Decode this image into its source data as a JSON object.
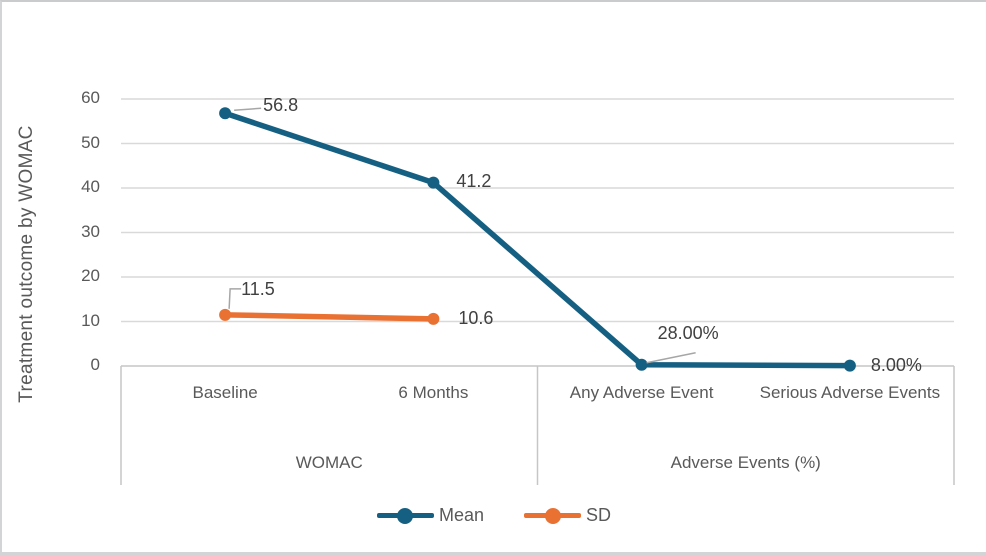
{
  "figure": {
    "background": "#ffffff",
    "frame_color": "#d2d4d6"
  },
  "chart_data": {
    "type": "line",
    "title": "",
    "xlabel": "",
    "ylabel": "Treatment outcome by WOMAC",
    "ylim": [
      0,
      60
    ],
    "ytick_step": 10,
    "ytick_labels": [
      "60",
      "50",
      "40",
      "30",
      "20",
      "10",
      "0"
    ],
    "grid": "horizontal",
    "grid_color": "#d9d9d9",
    "axis_line_color": "#c6c6c6",
    "leader_line_color": "#a6a6a6",
    "axis_text_color": "#595959",
    "data_label_color": "#404040",
    "categories": [
      "Baseline",
      "6 Months",
      "Any Adverse Event",
      "Serious Adverse Events"
    ],
    "category_groups": [
      {
        "label": "WOMAC",
        "span": [
          0,
          1
        ]
      },
      {
        "label": "Adverse Events (%)",
        "span": [
          2,
          3
        ]
      }
    ],
    "legend_position": "bottom",
    "series": [
      {
        "name": "Mean",
        "color": "#156082",
        "x_indices": [
          0,
          1,
          2,
          3
        ],
        "values": [
          56.8,
          41.2,
          0.28,
          0.08
        ],
        "point_labels": [
          "56.8",
          "41.2",
          "28.00%",
          "8.00%"
        ]
      },
      {
        "name": "SD",
        "color": "#e97132",
        "x_indices": [
          0,
          1
        ],
        "values": [
          11.5,
          10.6
        ],
        "point_labels": [
          "11.5",
          "10.6"
        ]
      }
    ]
  }
}
